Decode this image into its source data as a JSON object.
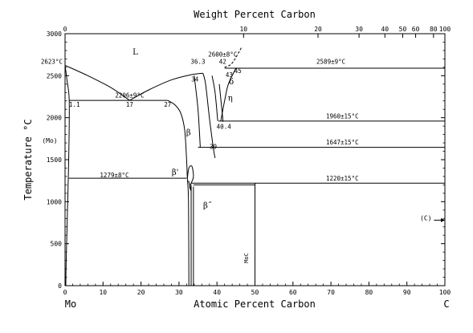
{
  "chart_data": {
    "type": "line",
    "top_axis_title": "Weight Percent Carbon",
    "bottom_axis_title": "Atomic Percent Carbon",
    "left_axis_title": "Temperature °C",
    "left_axis_sublabel": "(Mo)",
    "left_element": "Mo",
    "right_element": "C",
    "xlim": [
      0,
      100
    ],
    "ylim": [
      0,
      3000
    ],
    "x_ticks": [
      0,
      10,
      20,
      30,
      40,
      50,
      60,
      70,
      80,
      90,
      100
    ],
    "y_ticks": [
      0,
      500,
      1000,
      1500,
      2000,
      2500,
      3000
    ],
    "top_ticks": [
      {
        "wt": 0,
        "at": 0
      },
      {
        "wt": 10,
        "at": 47.0
      },
      {
        "wt": 20,
        "at": 66.6
      },
      {
        "wt": 30,
        "at": 77.4
      },
      {
        "wt": 40,
        "at": 84.2
      },
      {
        "wt": 50,
        "at": 88.9
      },
      {
        "wt": 60,
        "at": 92.3
      },
      {
        "wt": 80,
        "at": 97.0
      },
      {
        "wt": 100,
        "at": 100
      }
    ],
    "phase_labels": [
      {
        "text": "L",
        "x": 18.5,
        "y": 2750
      },
      {
        "text": "β",
        "x": 32.5,
        "y": 1790
      },
      {
        "text": "β'",
        "x": 29,
        "y": 1320
      },
      {
        "text": "β˝",
        "x": 37.5,
        "y": 920
      },
      {
        "text": "δ",
        "x": 43.8,
        "y": 2400
      },
      {
        "text": "η",
        "x": 43.5,
        "y": 2200
      },
      {
        "text": "MoC",
        "x": 48.2,
        "y": 330
      },
      {
        "text": "(C)",
        "x": 95,
        "y": 780
      }
    ],
    "annotations": [
      {
        "text": "2623°C",
        "x": -3.5,
        "y": 2640
      },
      {
        "text": "2206±9°C",
        "x": 17,
        "y": 2240
      },
      {
        "text": "1.1",
        "x": 2.5,
        "y": 2130
      },
      {
        "text": "17",
        "x": 17,
        "y": 2130
      },
      {
        "text": "27",
        "x": 27,
        "y": 2130
      },
      {
        "text": "36.3",
        "x": 35,
        "y": 2640
      },
      {
        "text": "34",
        "x": 34.2,
        "y": 2430
      },
      {
        "text": "2600±8°C",
        "x": 41.5,
        "y": 2730
      },
      {
        "text": "42",
        "x": 41.5,
        "y": 2640
      },
      {
        "text": "45",
        "x": 45.5,
        "y": 2530
      },
      {
        "text": "43",
        "x": 43.2,
        "y": 2485
      },
      {
        "text": "2589±9°C",
        "x": 70,
        "y": 2640
      },
      {
        "text": "40.4",
        "x": 41.8,
        "y": 1870
      },
      {
        "text": "1960±15°C",
        "x": 73,
        "y": 1990
      },
      {
        "text": "39",
        "x": 39,
        "y": 1630
      },
      {
        "text": "1647±15°C",
        "x": 73,
        "y": 1680
      },
      {
        "text": "1279±8°C",
        "x": 13,
        "y": 1290
      },
      {
        "text": "1220±15°C",
        "x": 73,
        "y": 1250
      }
    ],
    "isotherms": [
      {
        "x": [
          1.1,
          27
        ],
        "y": 2206
      },
      {
        "x": [
          42,
          100
        ],
        "y": 2589
      },
      {
        "x": [
          40.4,
          100
        ],
        "y": 1960
      },
      {
        "x": [
          35,
          100
        ],
        "y": 1647
      },
      {
        "x": [
          1,
          32
        ],
        "y": 1279
      },
      {
        "x": [
          33.2,
          100
        ],
        "y": 1220
      }
    ],
    "curves": [
      {
        "name": "liquidus-left",
        "points": [
          [
            0,
            2623
          ],
          [
            6,
            2500
          ],
          [
            12,
            2360
          ],
          [
            17,
            2206
          ]
        ]
      },
      {
        "name": "liquidus-mid",
        "points": [
          [
            17,
            2206
          ],
          [
            22,
            2330
          ],
          [
            28,
            2450
          ],
          [
            33,
            2510
          ],
          [
            36.3,
            2530
          ]
        ]
      },
      {
        "name": "mo-solidus",
        "points": [
          [
            0,
            2623
          ],
          [
            0.5,
            2450
          ],
          [
            1.1,
            2206
          ],
          [
            1.0,
            1600
          ],
          [
            0.7,
            1000
          ],
          [
            0.3,
            300
          ],
          [
            0.2,
            0
          ]
        ]
      },
      {
        "name": "beta-left",
        "points": [
          [
            27,
            2206
          ],
          [
            29,
            2150
          ],
          [
            30.5,
            2050
          ],
          [
            31.5,
            1850
          ],
          [
            32,
            1500
          ],
          [
            32.2,
            1279
          ],
          [
            32.5,
            1000
          ],
          [
            32.6,
            0
          ]
        ]
      },
      {
        "name": "beta-dome-left",
        "points": [
          [
            34,
            2500
          ],
          [
            35,
            2100
          ],
          [
            35.6,
            1647
          ]
        ]
      },
      {
        "name": "beta-right",
        "points": [
          [
            36.3,
            2530
          ],
          [
            37,
            2400
          ],
          [
            38,
            2000
          ],
          [
            39,
            1647
          ],
          [
            39.5,
            1520
          ]
        ]
      },
      {
        "name": "eta-left",
        "points": [
          [
            38.7,
            2500
          ],
          [
            39.5,
            2300
          ],
          [
            40.2,
            1960
          ]
        ]
      },
      {
        "name": "eta-right",
        "points": [
          [
            40.6,
            2400
          ],
          [
            41.5,
            2000
          ],
          [
            41.5,
            1960
          ]
        ]
      },
      {
        "name": "delta-right",
        "points": [
          [
            45,
            2589
          ],
          [
            43,
            2400
          ],
          [
            42,
            2200
          ],
          [
            41,
            1960
          ]
        ]
      },
      {
        "name": "liquidus-right",
        "points": [
          [
            42,
            2600
          ],
          [
            44,
            2650
          ],
          [
            46.5,
            2840
          ]
        ],
        "dashed": true
      },
      {
        "name": "beta-prime-loop",
        "points": [
          [
            32.2,
            1279
          ],
          [
            32.6,
            1400
          ],
          [
            33.4,
            1420
          ],
          [
            33.8,
            1300
          ],
          [
            33.2,
            1220
          ],
          [
            32.8,
            1180
          ],
          [
            33.2,
            1130
          ],
          [
            32.5,
            1250
          ]
        ]
      },
      {
        "name": "beta-dprime-left",
        "points": [
          [
            33.2,
            1200
          ],
          [
            33.2,
            0
          ]
        ]
      },
      {
        "name": "beta-dprime-right",
        "points": [
          [
            33.8,
            1180
          ],
          [
            33.8,
            0
          ]
        ]
      },
      {
        "name": "moc-line",
        "points": [
          [
            50,
            1220
          ],
          [
            50,
            0
          ]
        ]
      },
      {
        "name": "beta-dprime-top",
        "points": [
          [
            33.8,
            1200
          ],
          [
            50,
            1200
          ]
        ]
      }
    ]
  }
}
